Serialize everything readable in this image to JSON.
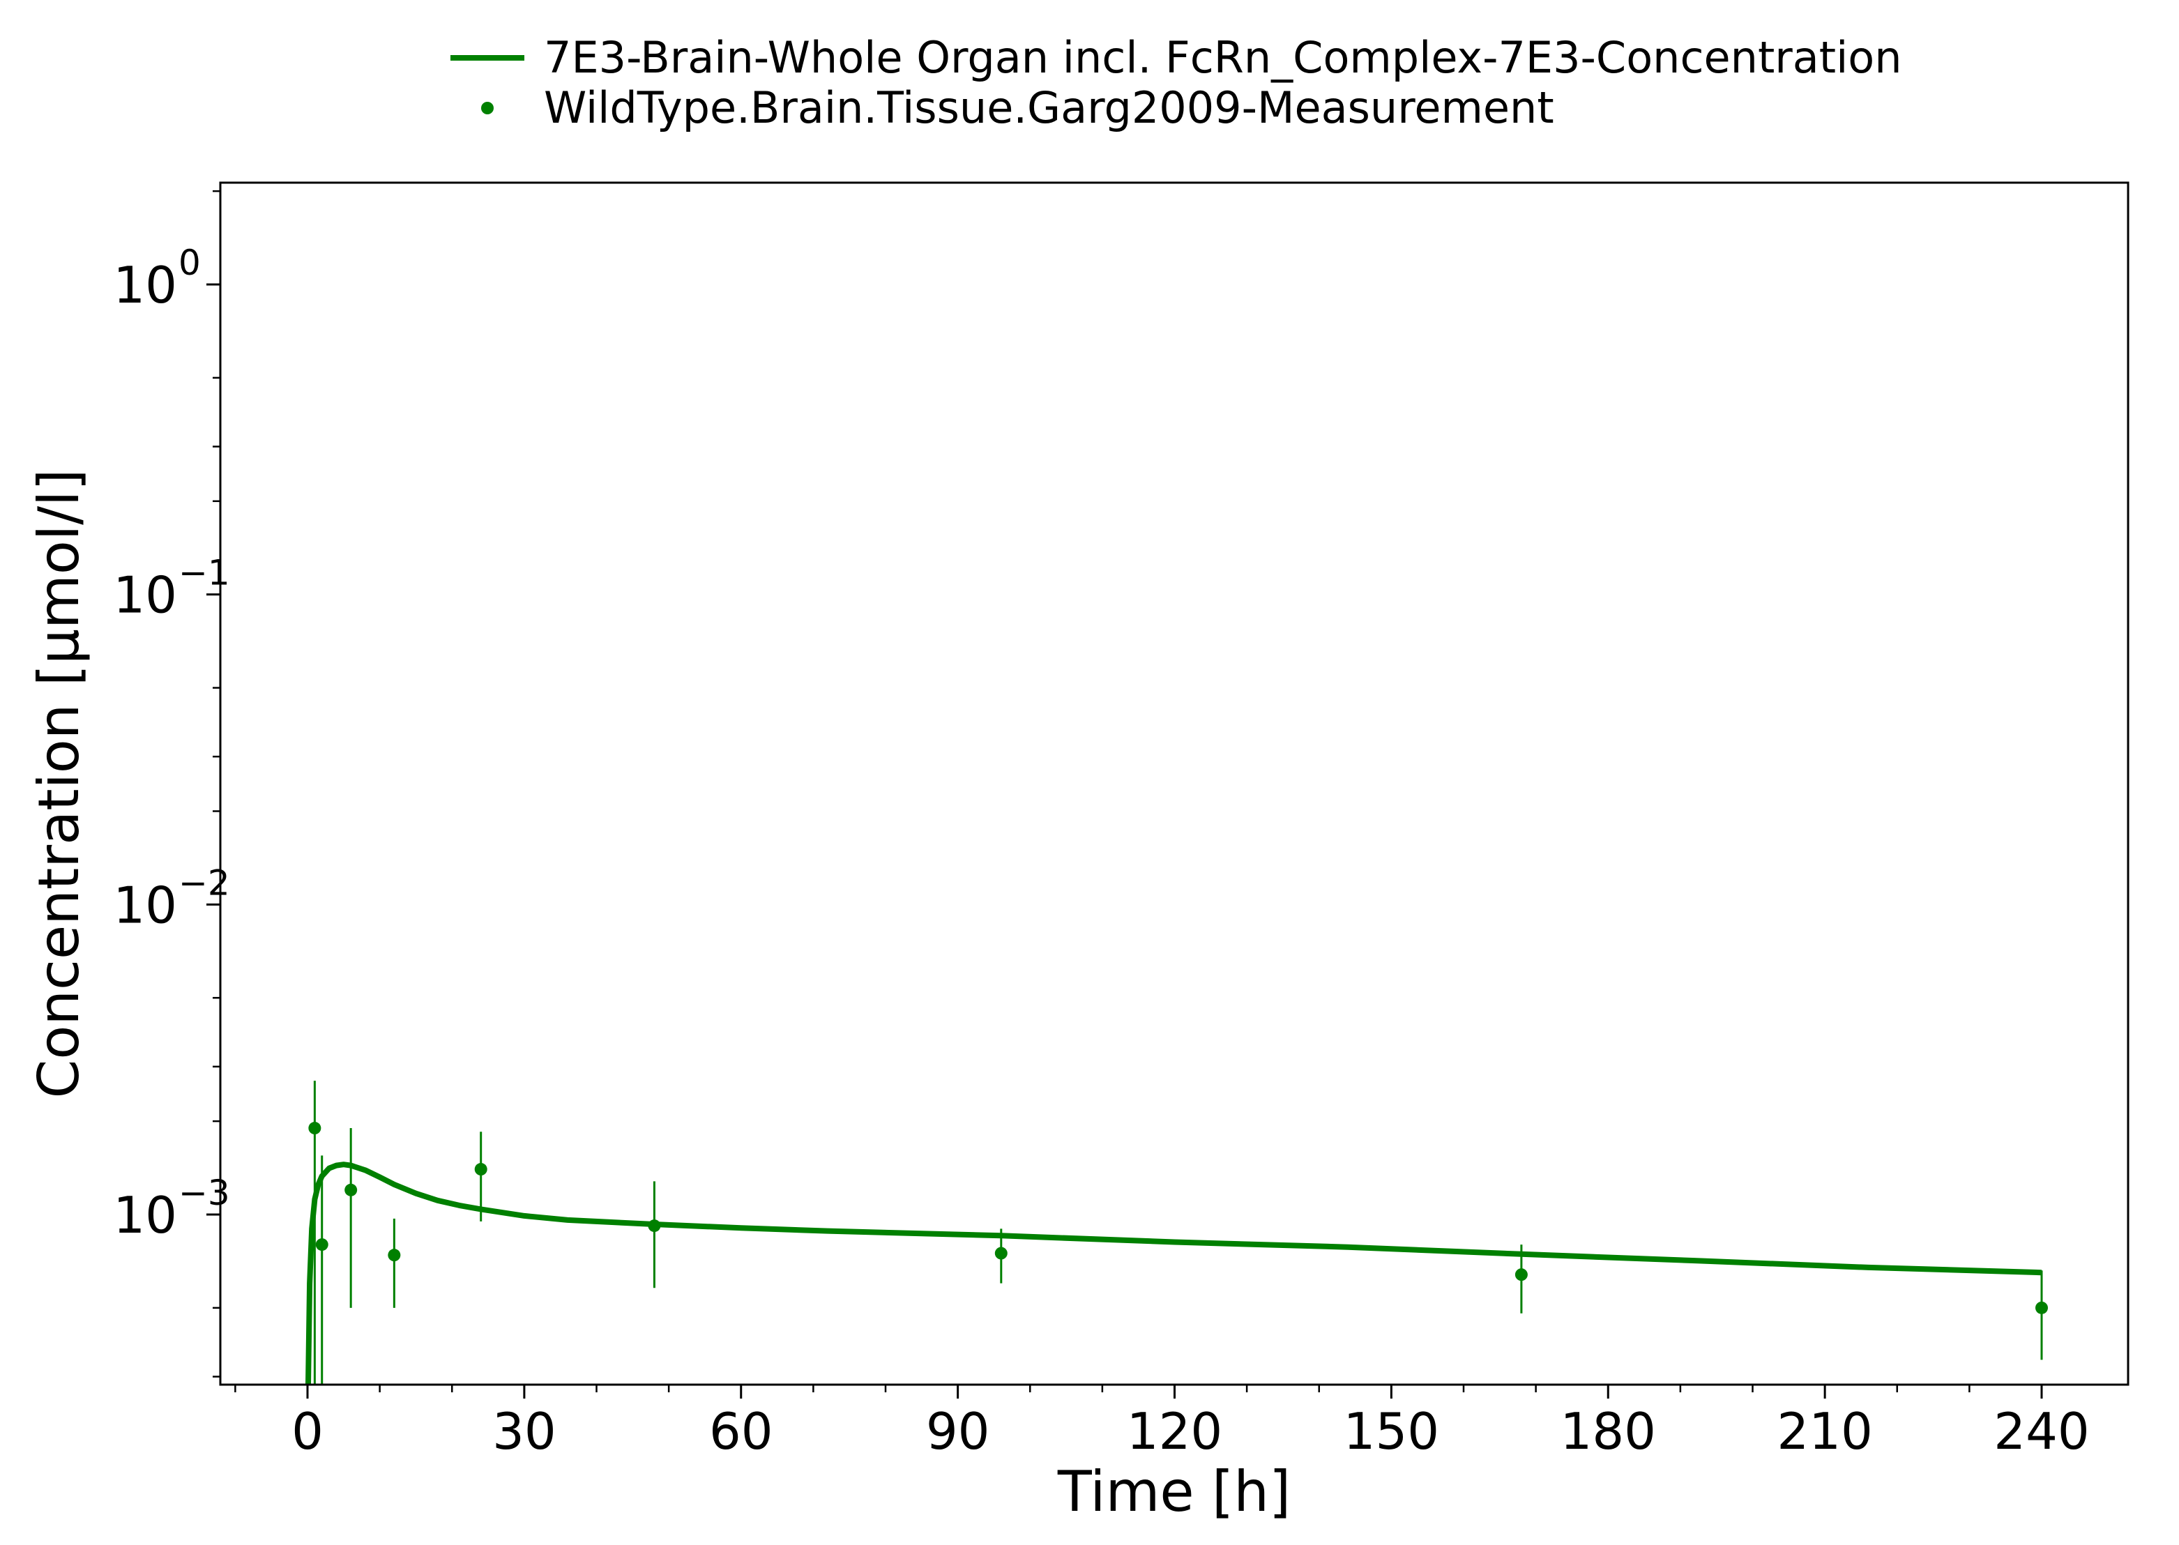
{
  "chart_data": {
    "type": "line",
    "title": "",
    "xlabel": "Time [h]",
    "ylabel": "Concentration [µmol/l]",
    "xlim": [
      -10,
      240
    ],
    "ylim": [
      0.00028,
      2.0
    ],
    "yscale": "log",
    "grid": false,
    "legend_position": "top-center",
    "x_ticks": [
      0,
      30,
      60,
      90,
      120,
      150,
      180,
      210,
      240
    ],
    "x_tick_labels": [
      "0",
      "30",
      "60",
      "90",
      "120",
      "150",
      "180",
      "210",
      "240"
    ],
    "y_ticks": [
      {
        "value": 1,
        "base": "10",
        "exp": "0"
      },
      {
        "value": 0.1,
        "base": "10",
        "exp": "−1"
      },
      {
        "value": 0.01,
        "base": "10",
        "exp": "−2"
      },
      {
        "value": 0.001,
        "base": "10",
        "exp": "−3"
      }
    ],
    "series": [
      {
        "name": "7E3-Brain-Whole Organ incl. FcRn_Complex-7E3-Concentration",
        "type": "line",
        "color": "#008000",
        "x": [
          0,
          0.1,
          0.3,
          0.6,
          1.0,
          1.5,
          2.0,
          3.0,
          4.0,
          5.0,
          6.0,
          8.0,
          10.0,
          12.0,
          15.0,
          18.0,
          21.0,
          24.0,
          30.0,
          36.0,
          48.0,
          60.0,
          72.0,
          96.0,
          120.0,
          144.0,
          168.0,
          192.0,
          216.0,
          240.0
        ],
        "y": [
          0.0001,
          0.00025,
          0.0006,
          0.0009,
          0.00112,
          0.00125,
          0.00133,
          0.00141,
          0.00144,
          0.00145,
          0.00144,
          0.00139,
          0.00132,
          0.00125,
          0.00117,
          0.00111,
          0.00107,
          0.00104,
          0.00099,
          0.00096,
          0.00093,
          0.000905,
          0.000885,
          0.000855,
          0.000815,
          0.000785,
          0.000745,
          0.00071,
          0.000675,
          0.00065
        ]
      },
      {
        "name": "WildType.Brain.Tissue.Garg2009-Measurement",
        "type": "scatter",
        "color": "#008000",
        "x": [
          1,
          2,
          6,
          12,
          24,
          48,
          96,
          168,
          240
        ],
        "y": [
          0.0019,
          0.0008,
          0.0012,
          0.00074,
          0.0014,
          0.00092,
          0.00075,
          0.00064,
          0.0005
        ],
        "yerr_low": [
          0.00028,
          0.00028,
          0.0005,
          0.0005,
          0.00095,
          0.00058,
          0.0006,
          0.00048,
          0.00034
        ],
        "yerr_high": [
          0.0027,
          0.00155,
          0.0019,
          0.00097,
          0.00185,
          0.00128,
          0.0009,
          0.0008,
          0.00066
        ]
      }
    ]
  }
}
